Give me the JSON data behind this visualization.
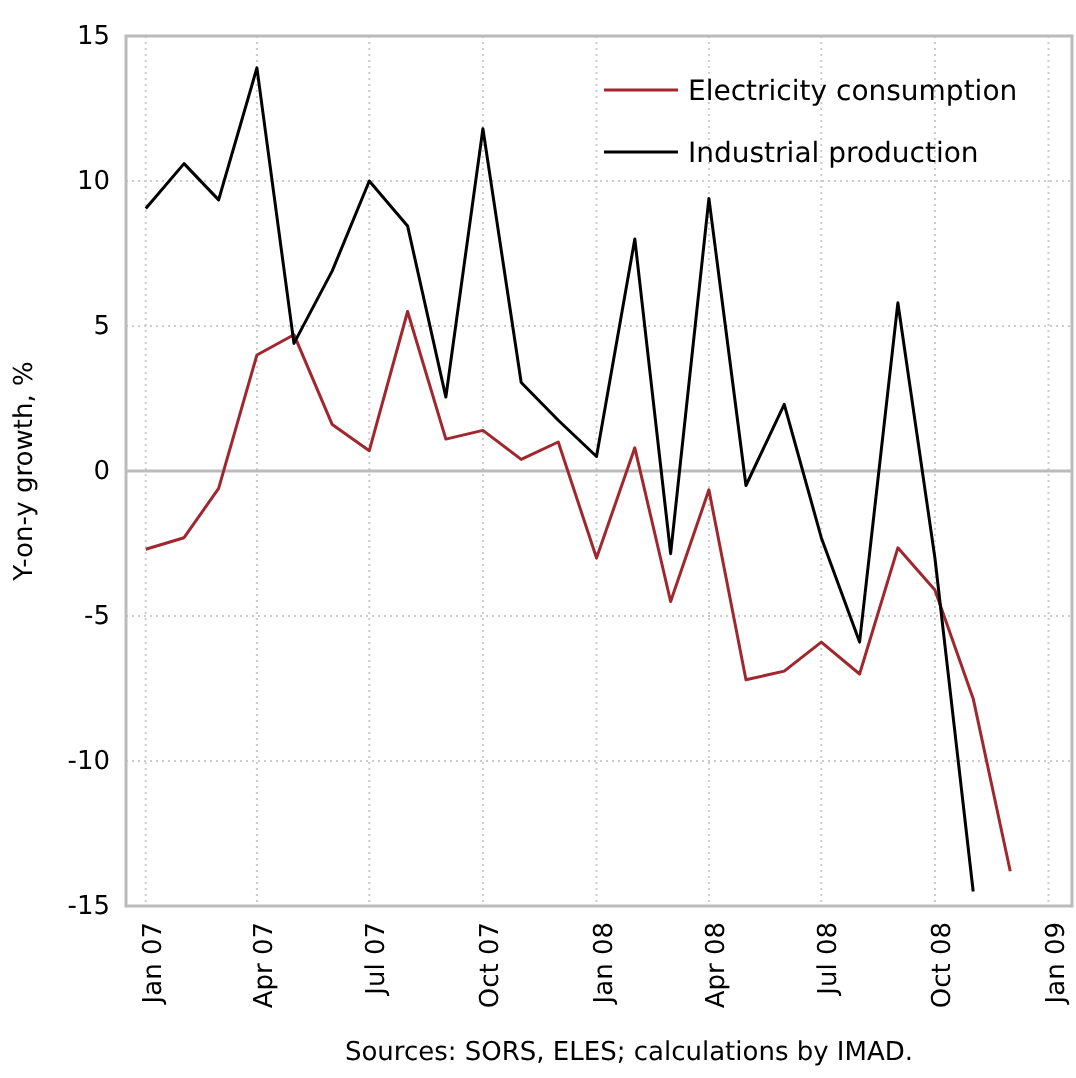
{
  "chart_data": {
    "type": "line",
    "ylabel": "Y-on-y growth, %",
    "annotations": [
      "Sources: SORS, ELES; calculations by IMAD."
    ],
    "x": [
      "2007-01",
      "2007-02",
      "2007-03",
      "2007-04",
      "2007-05",
      "2007-06",
      "2007-07",
      "2007-08",
      "2007-09",
      "2007-10",
      "2007-11",
      "2007-12",
      "2008-01",
      "2008-02",
      "2008-03",
      "2008-04",
      "2008-05",
      "2008-06",
      "2008-07",
      "2008-08",
      "2008-09",
      "2008-10",
      "2008-11",
      "2008-12"
    ],
    "series": [
      {
        "name": "Electricity consumption",
        "color": "#a0272d",
        "values": [
          -2.7,
          -2.3,
          -0.6,
          4.0,
          4.7,
          1.6,
          0.7,
          5.5,
          1.1,
          1.4,
          0.4,
          1.0,
          -3.0,
          0.8,
          -4.5,
          -0.65,
          -7.2,
          -6.9,
          -5.9,
          -7.0,
          -2.65,
          -4.1,
          -7.85,
          -13.8
        ]
      },
      {
        "name": "Industrial production",
        "color": "#000000",
        "values": [
          9.05,
          10.6,
          9.35,
          13.9,
          4.4,
          6.9,
          10.0,
          8.45,
          2.55,
          11.8,
          3.05,
          1.75,
          0.5,
          8.0,
          -2.85,
          9.4,
          -0.5,
          2.3,
          -2.3,
          -5.9,
          5.8,
          -3.0,
          -14.5,
          null
        ]
      }
    ],
    "xlim": [
      "2006-12-16",
      "2009-01-20"
    ],
    "xticks": [
      {
        "value": "2007-01",
        "label": "Jan 07"
      },
      {
        "value": "2007-04",
        "label": "Apr 07"
      },
      {
        "value": "2007-07",
        "label": "Jul 07"
      },
      {
        "value": "2007-10",
        "label": "Oct 07"
      },
      {
        "value": "2008-01",
        "label": "Jan 08"
      },
      {
        "value": "2008-04",
        "label": "Apr 08"
      },
      {
        "value": "2008-07",
        "label": "Jul 08"
      },
      {
        "value": "2008-10",
        "label": "Oct 08"
      },
      {
        "value": "2009-01",
        "label": "Jan 09"
      }
    ],
    "ylim": [
      -15,
      15
    ],
    "yticks": [
      -15,
      -10,
      -5,
      0,
      5,
      10,
      15
    ],
    "grid": true,
    "legend": "top right",
    "marker": "none",
    "line_style": "solid"
  }
}
